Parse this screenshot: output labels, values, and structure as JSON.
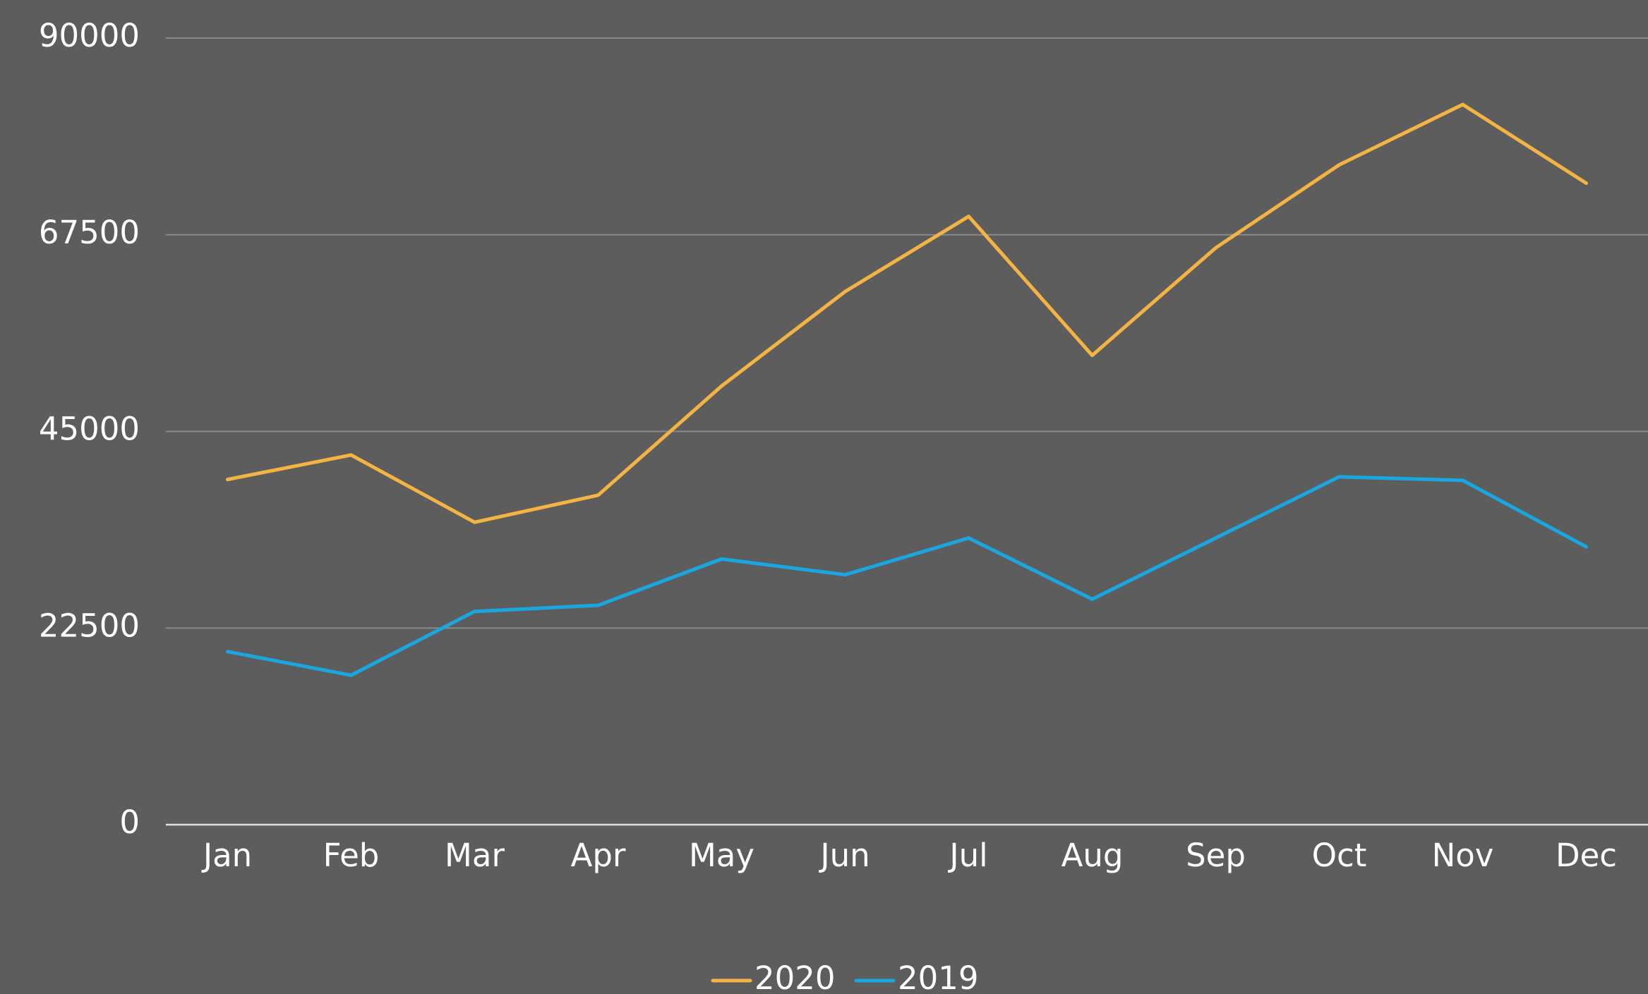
{
  "chart_data": {
    "type": "line",
    "categories": [
      "Jan",
      "Feb",
      "Mar",
      "Apr",
      "May",
      "Jun",
      "Jul",
      "Aug",
      "Sep",
      "Oct",
      "Nov",
      "Dec"
    ],
    "series": [
      {
        "name": "2020",
        "color": "#f4b443",
        "values": [
          39500,
          42300,
          34600,
          37700,
          50200,
          61000,
          69600,
          53700,
          66000,
          75500,
          82400,
          73400
        ]
      },
      {
        "name": "2019",
        "color": "#1aa6e0",
        "values": [
          19800,
          17100,
          24400,
          25100,
          30400,
          28600,
          32800,
          25800,
          32800,
          39800,
          39400,
          31800
        ]
      }
    ],
    "ylim": [
      0,
      90000
    ],
    "yticks": [
      0,
      22500,
      45000,
      67500,
      90000
    ],
    "grid": true,
    "legend": "bottom"
  }
}
